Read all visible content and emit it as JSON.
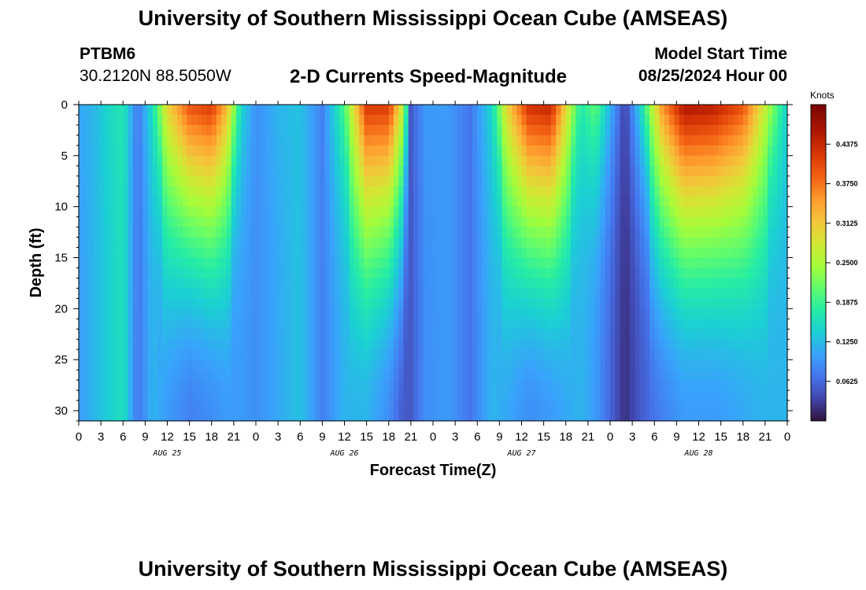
{
  "header": {
    "title": "University of Southern Mississippi Ocean Cube (AMSEAS)",
    "station": "PTBM6",
    "coords": "30.2120N  88.5050W",
    "subtitle": "2-D Currents Speed-Magnitude",
    "start_label": "Model Start Time",
    "start_value": "08/25/2024 Hour 00"
  },
  "footer": {
    "title": "University of Southern Mississippi Ocean Cube (AMSEAS)"
  },
  "chart_data": {
    "type": "heatmap",
    "xlabel": "Forecast Time(Z)",
    "ylabel": "Depth (ft)",
    "x_range_hours": [
      0,
      96
    ],
    "y_range_ft": [
      0,
      31
    ],
    "x_ticks": [
      "0",
      "3",
      "6",
      "9",
      "12",
      "15",
      "18",
      "21",
      "0",
      "3",
      "6",
      "9",
      "12",
      "15",
      "18",
      "21",
      "0",
      "3",
      "6",
      "9",
      "12",
      "15",
      "18",
      "21",
      "0",
      "3",
      "6",
      "9",
      "12",
      "15",
      "18",
      "21",
      "0"
    ],
    "day_labels": [
      "AUG 25",
      "AUG 26",
      "AUG 27",
      "AUG 28"
    ],
    "y_ticks": [
      0,
      5,
      10,
      15,
      20,
      25,
      30
    ],
    "colorbar": {
      "unit": "Knots",
      "range": [
        0,
        0.5
      ],
      "ticks": [
        "0.4375",
        "0.3750",
        "0.3125",
        "0.2500",
        "0.1875",
        "0.1250",
        "0.0625"
      ]
    },
    "speed_pattern_note_free": true,
    "columns": [
      {
        "hour": 0,
        "surface": 0.11,
        "bottom": 0.1
      },
      {
        "hour": 2,
        "surface": 0.12,
        "bottom": 0.12
      },
      {
        "hour": 4,
        "surface": 0.15,
        "bottom": 0.14
      },
      {
        "hour": 6,
        "surface": 0.17,
        "bottom": 0.16
      },
      {
        "hour": 8,
        "surface": 0.07,
        "bottom": 0.07
      },
      {
        "hour": 10,
        "surface": 0.16,
        "bottom": 0.12
      },
      {
        "hour": 12,
        "surface": 0.3,
        "bottom": 0.1
      },
      {
        "hour": 15,
        "surface": 0.4,
        "bottom": 0.08
      },
      {
        "hour": 18,
        "surface": 0.42,
        "bottom": 0.09
      },
      {
        "hour": 20,
        "surface": 0.33,
        "bottom": 0.1
      },
      {
        "hour": 22,
        "surface": 0.15,
        "bottom": 0.1
      },
      {
        "hour": 24,
        "surface": 0.09,
        "bottom": 0.09
      },
      {
        "hour": 27,
        "surface": 0.12,
        "bottom": 0.11
      },
      {
        "hour": 30,
        "surface": 0.13,
        "bottom": 0.13
      },
      {
        "hour": 33,
        "surface": 0.08,
        "bottom": 0.08
      },
      {
        "hour": 36,
        "surface": 0.2,
        "bottom": 0.12
      },
      {
        "hour": 39,
        "surface": 0.42,
        "bottom": 0.12
      },
      {
        "hour": 42,
        "surface": 0.42,
        "bottom": 0.09
      },
      {
        "hour": 44,
        "surface": 0.26,
        "bottom": 0.05
      },
      {
        "hour": 45,
        "surface": 0.05,
        "bottom": 0.05
      },
      {
        "hour": 47,
        "surface": 0.1,
        "bottom": 0.09
      },
      {
        "hour": 50,
        "surface": 0.1,
        "bottom": 0.1
      },
      {
        "hour": 53,
        "surface": 0.07,
        "bottom": 0.07
      },
      {
        "hour": 56,
        "surface": 0.15,
        "bottom": 0.12
      },
      {
        "hour": 58,
        "surface": 0.3,
        "bottom": 0.11
      },
      {
        "hour": 61,
        "surface": 0.43,
        "bottom": 0.09
      },
      {
        "hour": 64,
        "surface": 0.44,
        "bottom": 0.1
      },
      {
        "hour": 66,
        "surface": 0.3,
        "bottom": 0.11
      },
      {
        "hour": 68,
        "surface": 0.17,
        "bottom": 0.12
      },
      {
        "hour": 70,
        "surface": 0.21,
        "bottom": 0.1
      },
      {
        "hour": 72,
        "surface": 0.12,
        "bottom": 0.06
      },
      {
        "hour": 74,
        "surface": 0.03,
        "bottom": 0.02
      },
      {
        "hour": 76,
        "surface": 0.14,
        "bottom": 0.05
      },
      {
        "hour": 79,
        "surface": 0.35,
        "bottom": 0.08
      },
      {
        "hour": 82,
        "surface": 0.46,
        "bottom": 0.1
      },
      {
        "hour": 86,
        "surface": 0.45,
        "bottom": 0.1
      },
      {
        "hour": 90,
        "surface": 0.4,
        "bottom": 0.11
      },
      {
        "hour": 93,
        "surface": 0.27,
        "bottom": 0.12
      },
      {
        "hour": 96,
        "surface": 0.14,
        "bottom": 0.12
      }
    ]
  }
}
